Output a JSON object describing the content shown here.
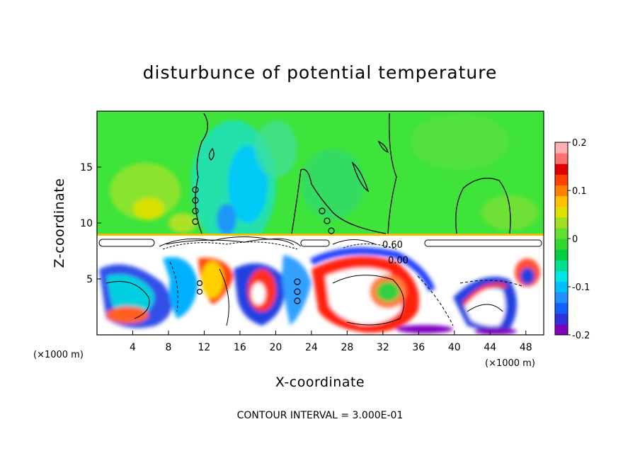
{
  "chart_data": {
    "type": "heatmap",
    "title": "disturbunce of potential temperature",
    "xlabel": "X-coordinate",
    "ylabel": "Z-coordinate",
    "x_unit": "(×1000 m)",
    "xlim": [
      0,
      50
    ],
    "ylim": [
      0,
      20
    ],
    "x_ticks": [
      4,
      8,
      12,
      16,
      20,
      24,
      28,
      32,
      36,
      40,
      44,
      48
    ],
    "y_ticks": [
      5,
      10,
      15
    ],
    "colorbar": {
      "range": [
        -0.2,
        0.2
      ],
      "ticks": [
        -0.2,
        -0.1,
        0,
        0.1,
        0.2
      ],
      "tick_labels": [
        "-0.2",
        "-0.1",
        "0",
        "0.1",
        "0.2"
      ],
      "colors": [
        "#8000c0",
        "#3030e0",
        "#1060ff",
        "#1e90ff",
        "#00bfff",
        "#00e5e5",
        "#00e090",
        "#00d040",
        "#30d830",
        "#60e030",
        "#a0e020",
        "#e0e000",
        "#ffc000",
        "#ff8000",
        "#ff4000",
        "#e00000",
        "#ff7070",
        "#ffb0b0"
      ]
    },
    "contour_labels": [
      "0.60",
      "0.00"
    ],
    "footer": "CONTOUR INTERVAL = 3.000E-01",
    "grid": false
  }
}
